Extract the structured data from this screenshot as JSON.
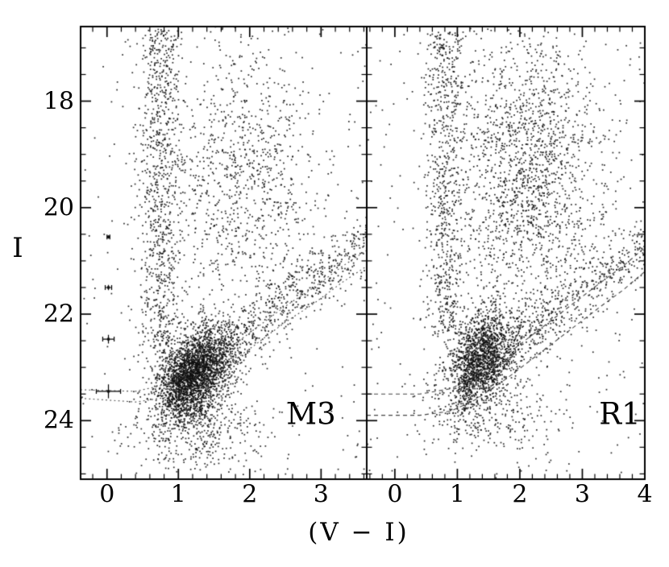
{
  "chart_data": {
    "type": "scatter",
    "title": "",
    "xlabel": "(V − I)",
    "ylabel": "I",
    "y_inverted": true,
    "ylim": [
      16.6,
      25.1
    ],
    "yticks_major": [
      18,
      20,
      22,
      24
    ],
    "ytick_labels": [
      "18",
      "20",
      "22",
      "24"
    ],
    "y_minor_step": 0.5,
    "x_minor_step": 0.2,
    "style": {
      "point_color": "#0f0f0f",
      "axis_color": "#000000",
      "line_color": "#444444",
      "background": "#ffffff"
    },
    "panels": [
      {
        "label": "M3",
        "label_pos": {
          "x": 2.86,
          "y": 23.87
        },
        "xlim": [
          -0.37,
          3.64
        ],
        "xtick_values": [
          0,
          1,
          2,
          3
        ],
        "xtick_labels": [
          "0",
          "1",
          "2",
          "3"
        ],
        "clusters": [
          {
            "kind": "gauss",
            "n": 2600,
            "cx": 1.2,
            "cy": 23.15,
            "sx": 0.27,
            "sy": 0.42,
            "tilt": -0.6,
            "seed": 11
          },
          {
            "kind": "band",
            "n": 950,
            "x0": 1.0,
            "y0": 23.35,
            "x1": 3.64,
            "y1": 20.6,
            "spread": 0.3,
            "bias": 1.4,
            "seed": 12
          },
          {
            "kind": "plume",
            "n": 850,
            "cx": 0.74,
            "sx": 0.15,
            "y0": 16.65,
            "y1": 22.6,
            "seed": 13
          },
          {
            "kind": "gauss",
            "n": 950,
            "cx": 1.9,
            "cy": 19.4,
            "sx": 0.55,
            "sy": 1.25,
            "tilt": 0,
            "seed": 14
          },
          {
            "kind": "gauss",
            "n": 350,
            "cx": 1.35,
            "cy": 24.25,
            "sx": 0.5,
            "sy": 0.35,
            "tilt": 0,
            "seed": 15
          },
          {
            "kind": "uniform",
            "n": 260,
            "x0": -0.37,
            "x1": 3.64,
            "y0": 16.65,
            "y1": 25.05,
            "seed": 16
          }
        ],
        "lines": [
          {
            "style": "dotted",
            "points": [
              [
                -0.37,
                23.42
              ],
              [
                0.4,
                23.45
              ],
              [
                0.9,
                23.3
              ],
              [
                1.3,
                23.0
              ],
              [
                1.7,
                22.65
              ],
              [
                2.1,
                22.25
              ],
              [
                2.5,
                21.85
              ],
              [
                2.9,
                21.5
              ],
              [
                3.3,
                21.1
              ],
              [
                3.64,
                20.8
              ]
            ]
          },
          {
            "style": "dotted",
            "points": [
              [
                -0.37,
                23.58
              ],
              [
                0.4,
                23.65
              ],
              [
                0.9,
                23.55
              ],
              [
                1.3,
                23.3
              ],
              [
                1.7,
                22.95
              ],
              [
                2.1,
                22.55
              ],
              [
                2.5,
                22.15
              ],
              [
                2.9,
                21.8
              ],
              [
                3.3,
                21.4
              ],
              [
                3.64,
                21.1
              ]
            ]
          }
        ],
        "error_bars": [
          {
            "x": 0.02,
            "y": 20.55,
            "ex": 0.02,
            "ey": 0.03
          },
          {
            "x": 0.02,
            "y": 21.5,
            "ex": 0.045,
            "ey": 0.05
          },
          {
            "x": 0.02,
            "y": 22.47,
            "ex": 0.08,
            "ey": 0.08
          },
          {
            "x": 0.02,
            "y": 23.45,
            "ex": 0.17,
            "ey": 0.13
          }
        ]
      },
      {
        "label": "R1",
        "label_pos": {
          "x": 3.6,
          "y": 23.87
        },
        "xlim": [
          -0.45,
          4.0
        ],
        "xtick_values": [
          0,
          1,
          2,
          3,
          4
        ],
        "xtick_labels": [
          "0",
          "1",
          "2",
          "3",
          "4"
        ],
        "clusters": [
          {
            "kind": "gauss",
            "n": 1550,
            "cx": 1.38,
            "cy": 22.82,
            "sx": 0.28,
            "sy": 0.42,
            "tilt": -0.5,
            "seed": 21
          },
          {
            "kind": "band",
            "n": 750,
            "x0": 1.1,
            "y0": 23.3,
            "x1": 4.0,
            "y1": 20.7,
            "spread": 0.32,
            "bias": 1.4,
            "seed": 22
          },
          {
            "kind": "plume",
            "n": 700,
            "cx": 0.8,
            "sx": 0.16,
            "y0": 16.7,
            "y1": 22.4,
            "seed": 23
          },
          {
            "kind": "gauss",
            "n": 1700,
            "cx": 2.1,
            "cy": 19.4,
            "sx": 0.62,
            "sy": 1.35,
            "tilt": 0,
            "seed": 24
          },
          {
            "kind": "gauss",
            "n": 300,
            "cx": 1.45,
            "cy": 23.9,
            "sx": 0.5,
            "sy": 0.35,
            "tilt": 0,
            "seed": 25
          },
          {
            "kind": "uniform",
            "n": 280,
            "x0": -0.45,
            "x1": 4.0,
            "y0": 16.65,
            "y1": 25.05,
            "seed": 26
          }
        ],
        "lines": [
          {
            "style": "dashed",
            "points": [
              [
                -0.45,
                23.5
              ],
              [
                0.4,
                23.5
              ],
              [
                0.9,
                23.4
              ],
              [
                1.3,
                23.15
              ],
              [
                1.8,
                22.75
              ],
              [
                2.3,
                22.3
              ],
              [
                2.8,
                21.85
              ],
              [
                3.3,
                21.4
              ],
              [
                3.65,
                21.1
              ],
              [
                4.0,
                20.75
              ]
            ]
          },
          {
            "style": "dashed",
            "points": [
              [
                -0.45,
                23.9
              ],
              [
                0.4,
                23.9
              ],
              [
                0.9,
                23.82
              ],
              [
                1.3,
                23.6
              ],
              [
                1.8,
                23.2
              ],
              [
                2.3,
                22.75
              ],
              [
                2.8,
                22.3
              ],
              [
                3.3,
                21.85
              ],
              [
                3.65,
                21.55
              ],
              [
                4.0,
                21.2
              ]
            ]
          }
        ],
        "error_bars": []
      }
    ]
  }
}
